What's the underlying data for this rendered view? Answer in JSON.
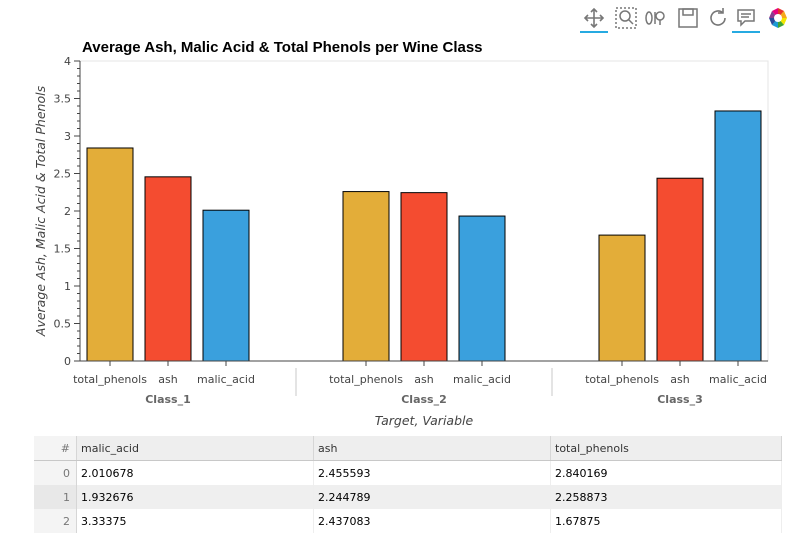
{
  "toolbar": {
    "tools": [
      "pan-icon",
      "box-zoom-icon",
      "wheel-zoom-icon",
      "save-icon",
      "reset-icon",
      "hover-icon",
      "bokeh-logo-icon"
    ]
  },
  "chart_data": {
    "type": "bar",
    "title": "Average Ash, Malic Acid & Total Phenols per Wine Class",
    "xlabel": "Target, Variable",
    "ylabel": "Average Ash, Malic Acid & Total Phenols",
    "ylim": [
      0,
      4
    ],
    "yticks": [
      "0",
      "0.5",
      "1",
      "1.5",
      "2",
      "2.5",
      "3",
      "3.5",
      "4"
    ],
    "groups": [
      "Class_1",
      "Class_2",
      "Class_3"
    ],
    "variables": [
      "total_phenols",
      "ash",
      "malic_acid"
    ],
    "colors": {
      "total_phenols": "#e3ad39",
      "ash": "#f44c30",
      "malic_acid": "#3aa0dd"
    },
    "series": [
      {
        "name": "total_phenols",
        "values": [
          2.840169,
          2.258873,
          1.67875
        ]
      },
      {
        "name": "ash",
        "values": [
          2.455593,
          2.244789,
          2.437083
        ]
      },
      {
        "name": "malic_acid",
        "values": [
          2.010678,
          1.932676,
          3.33375
        ]
      }
    ],
    "grid": false,
    "legend": "none"
  },
  "table": {
    "columns": [
      "#",
      "malic_acid",
      "ash",
      "total_phenols"
    ],
    "rows": [
      [
        "0",
        "2.010678",
        "2.455593",
        "2.840169"
      ],
      [
        "1",
        "1.932676",
        "2.244789",
        "2.258873"
      ],
      [
        "2",
        "3.33375",
        "2.437083",
        "1.67875"
      ]
    ]
  }
}
